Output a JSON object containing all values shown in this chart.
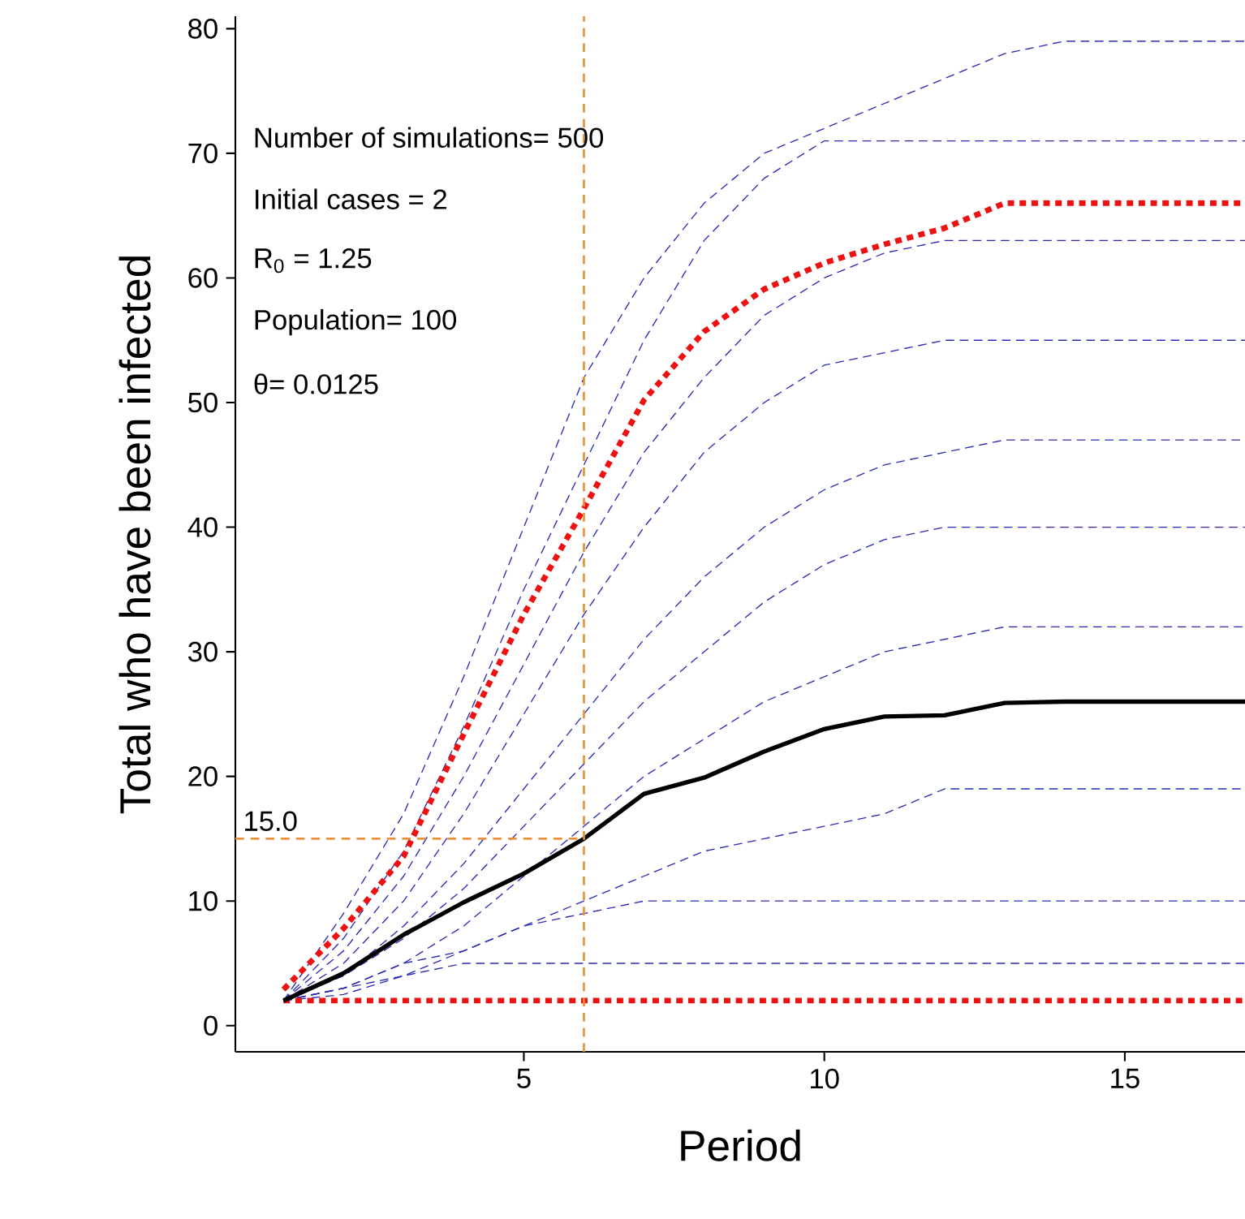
{
  "chart_data": {
    "type": "line",
    "xlabel": "Period",
    "ylabel": "Total who have been infected",
    "x": [
      1,
      2,
      3,
      4,
      5,
      6,
      7,
      8,
      9,
      10,
      11,
      12,
      13,
      14,
      15,
      16,
      17
    ],
    "xlim": [
      0.2,
      17
    ],
    "ylim": [
      -2.1,
      81
    ],
    "xticks": [
      5,
      10,
      15
    ],
    "yticks": [
      0,
      10,
      20,
      30,
      40,
      50,
      60,
      70,
      80
    ],
    "grid": false,
    "marker": "none",
    "annotations": [
      "Number of simulations= 500",
      "Initial cases = 2",
      "R$_{0}$ = 1.25",
      "Population= 100",
      "θ= 0.0125"
    ],
    "ref_lines": [
      {
        "axis": "x",
        "value": 6,
        "color": "#e8913c",
        "line_style": "dashed"
      },
      {
        "axis": "y",
        "value": 15,
        "label": "15.0",
        "color": "#e8913c",
        "line_style": "dashed"
      }
    ],
    "series": [
      {
        "color": "#2a2ab8",
        "line_style": "dashed",
        "values": [
          2,
          9,
          17,
          28,
          40,
          52,
          60,
          66,
          70,
          72,
          74,
          76,
          78,
          79,
          79,
          79,
          79
        ]
      },
      {
        "color": "#2a2ab8",
        "line_style": "dashed",
        "values": [
          2,
          7,
          14,
          24,
          35,
          45,
          55,
          63,
          68,
          71,
          71,
          71,
          71,
          71,
          71,
          71,
          71
        ]
      },
      {
        "color": "#2a2ab8",
        "line_style": "dashed",
        "values": [
          2,
          6,
          12,
          20,
          29,
          38,
          46,
          52,
          57,
          60,
          62,
          63,
          63,
          63,
          63,
          63,
          63
        ]
      },
      {
        "color": "#2a2ab8",
        "line_style": "dashed",
        "values": [
          2,
          5,
          10,
          17,
          25,
          33,
          40,
          46,
          50,
          53,
          54,
          55,
          55,
          55,
          55,
          55,
          55
        ]
      },
      {
        "color": "#2a2ab8",
        "line_style": "dashed",
        "values": [
          2,
          4,
          8,
          13,
          19,
          25,
          31,
          36,
          40,
          43,
          45,
          46,
          47,
          47,
          47,
          47,
          47
        ]
      },
      {
        "color": "#2a2ab8",
        "line_style": "dashed",
        "values": [
          2,
          4,
          7,
          11,
          16,
          21,
          26,
          30,
          34,
          37,
          39,
          40,
          40,
          40,
          40,
          40,
          40
        ]
      },
      {
        "color": "#2a2ab8",
        "line_style": "dashed",
        "values": [
          2,
          3,
          5,
          8,
          12,
          16,
          20,
          23,
          26,
          28,
          30,
          31,
          32,
          32,
          32,
          32,
          32
        ]
      },
      {
        "color": "#2a2ab8",
        "line_style": "dashed",
        "values": [
          2,
          3,
          4,
          6,
          8,
          10,
          12,
          14,
          15,
          16,
          17,
          19,
          19,
          19,
          19,
          19,
          19
        ]
      },
      {
        "color": "#2a2ab8",
        "line_style": "dashed",
        "values": [
          2,
          3,
          5,
          6,
          8,
          9,
          10,
          10,
          10,
          10,
          10,
          10,
          10,
          10,
          10,
          10,
          10
        ]
      },
      {
        "color": "#2a2ab8",
        "line_style": "dashed",
        "values": [
          2,
          2.5,
          4,
          5,
          5,
          5,
          5,
          5,
          5,
          5,
          5,
          5,
          5,
          5,
          5,
          5,
          5
        ]
      },
      {
        "color": "#ee1111",
        "line_style": "dotted",
        "values": [
          2.9,
          7.8,
          13.6,
          23.4,
          33,
          41.5,
          50.2,
          55.7,
          59.1,
          61.2,
          62.7,
          64,
          66,
          66,
          66,
          66,
          66
        ]
      },
      {
        "color": "#ee1111",
        "line_style": "dotted",
        "values": [
          2,
          2,
          2,
          2,
          2,
          2,
          2,
          2,
          2,
          2,
          2,
          2,
          2,
          2,
          2,
          2,
          2
        ]
      },
      {
        "color": "#000000",
        "line_style": "solid",
        "values": [
          2,
          4.2,
          7.3,
          9.9,
          12.2,
          15,
          18.6,
          19.9,
          22,
          23.8,
          24.8,
          24.9,
          25.9,
          26,
          26,
          26,
          26
        ]
      }
    ]
  }
}
